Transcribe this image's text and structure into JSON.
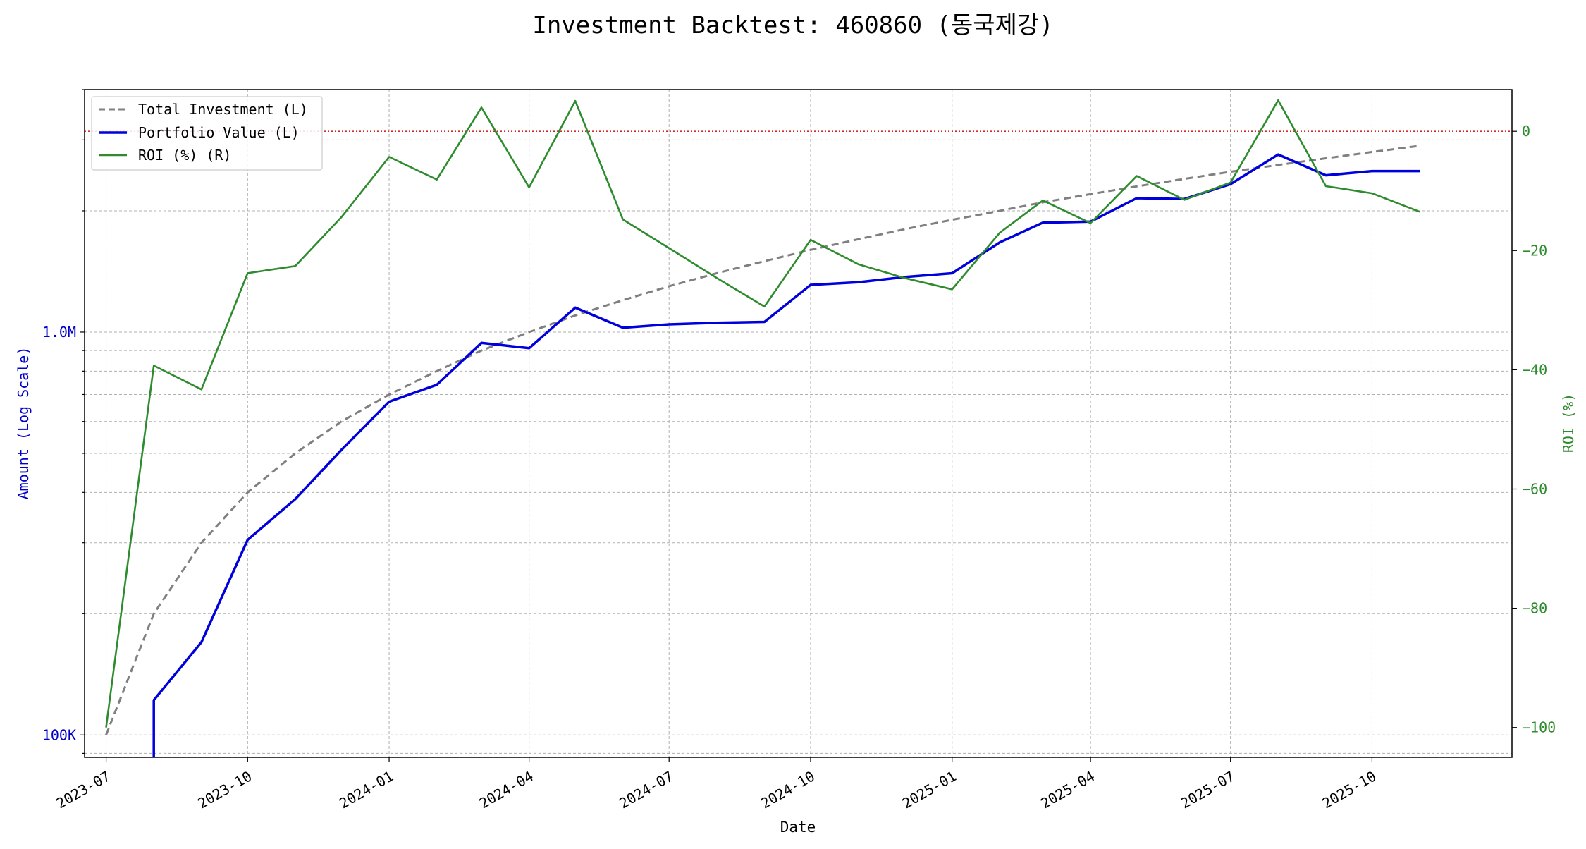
{
  "chart_data": {
    "type": "line",
    "title": "Investment Backtest: 460860 (동국제강)",
    "xlabel": "Date",
    "ylabel_left": "Amount (Log Scale)",
    "ylabel_right": "ROI (%)",
    "left_axis": {
      "scale": "log",
      "ylim": [
        88000,
        4000000
      ],
      "ticks": [
        100000,
        1000000
      ],
      "tick_labels": [
        "100K",
        "1.0M"
      ]
    },
    "right_axis": {
      "scale": "linear",
      "ylim": [
        -105,
        7
      ],
      "ticks": [
        -100,
        -80,
        -60,
        -40,
        -20,
        0
      ],
      "tick_labels": [
        "−100",
        "−80",
        "−60",
        "−40",
        "−20",
        "0"
      ]
    },
    "x_range": [
      "2023-06-17",
      "2025-12-31"
    ],
    "x_ticks": [
      "2023-07-01",
      "2023-10-01",
      "2024-01-01",
      "2024-04-01",
      "2024-07-01",
      "2024-10-01",
      "2025-01-01",
      "2025-04-01",
      "2025-07-01",
      "2025-10-01"
    ],
    "x_tick_labels": [
      "2023-07",
      "2023-10",
      "2024-01",
      "2024-04",
      "2024-07",
      "2024-10",
      "2025-01",
      "2025-04",
      "2025-07",
      "2025-10"
    ],
    "zero_line": {
      "axis": "right",
      "value": 0,
      "color": "#d62728"
    },
    "grid": true,
    "legend_position": "top-left",
    "series": [
      {
        "name": "Total Investment (L)",
        "axis": "left",
        "color": "#808080",
        "style": "dashed",
        "points": [
          [
            "2023-07-01",
            100000
          ],
          [
            "2023-08-01",
            200000
          ],
          [
            "2023-09-01",
            300000
          ],
          [
            "2023-10-01",
            400000
          ],
          [
            "2023-11-01",
            500000
          ],
          [
            "2023-12-01",
            600000
          ],
          [
            "2024-01-01",
            700000
          ],
          [
            "2024-02-01",
            800000
          ],
          [
            "2024-03-01",
            900000
          ],
          [
            "2024-04-01",
            1000000
          ],
          [
            "2024-05-01",
            1100000
          ],
          [
            "2024-06-01",
            1200000
          ],
          [
            "2024-07-01",
            1300000
          ],
          [
            "2024-08-01",
            1400000
          ],
          [
            "2024-09-01",
            1500000
          ],
          [
            "2024-10-01",
            1600000
          ],
          [
            "2024-11-01",
            1700000
          ],
          [
            "2024-12-01",
            1800000
          ],
          [
            "2025-01-01",
            1900000
          ],
          [
            "2025-02-01",
            2000000
          ],
          [
            "2025-03-01",
            2100000
          ],
          [
            "2025-04-01",
            2200000
          ],
          [
            "2025-05-01",
            2300000
          ],
          [
            "2025-06-01",
            2400000
          ],
          [
            "2025-07-01",
            2500000
          ],
          [
            "2025-08-01",
            2600000
          ],
          [
            "2025-09-01",
            2700000
          ],
          [
            "2025-10-01",
            2800000
          ],
          [
            "2025-11-01",
            2900000
          ]
        ]
      },
      {
        "name": "Portfolio Value (L)",
        "axis": "left",
        "color": "#0000dd",
        "style": "solid",
        "points": [
          [
            "2023-08-01",
            70000
          ],
          [
            "2023-08-01",
            122000
          ],
          [
            "2023-09-01",
            170000
          ],
          [
            "2023-10-01",
            305000
          ],
          [
            "2023-11-01",
            385000
          ],
          [
            "2023-12-01",
            510000
          ],
          [
            "2024-01-01",
            672000
          ],
          [
            "2024-02-01",
            740000
          ],
          [
            "2024-03-01",
            940000
          ],
          [
            "2024-04-01",
            912000
          ],
          [
            "2024-05-01",
            1150000
          ],
          [
            "2024-06-01",
            1025000
          ],
          [
            "2024-07-01",
            1045000
          ],
          [
            "2024-08-01",
            1055000
          ],
          [
            "2024-09-01",
            1060000
          ],
          [
            "2024-10-01",
            1310000
          ],
          [
            "2024-11-01",
            1330000
          ],
          [
            "2024-12-01",
            1370000
          ],
          [
            "2025-01-01",
            1400000
          ],
          [
            "2025-02-01",
            1670000
          ],
          [
            "2025-03-01",
            1870000
          ],
          [
            "2025-04-01",
            1880000
          ],
          [
            "2025-05-01",
            2150000
          ],
          [
            "2025-06-01",
            2140000
          ],
          [
            "2025-07-01",
            2330000
          ],
          [
            "2025-08-01",
            2760000
          ],
          [
            "2025-09-01",
            2450000
          ],
          [
            "2025-10-01",
            2510000
          ],
          [
            "2025-11-01",
            2510000
          ]
        ]
      },
      {
        "name": "ROI (%) (R)",
        "axis": "right",
        "color": "#2e8b2e",
        "style": "solid",
        "points": [
          [
            "2023-07-01",
            -100
          ],
          [
            "2023-08-01",
            -39.3
          ],
          [
            "2023-09-01",
            -43.3
          ],
          [
            "2023-10-01",
            -23.8
          ],
          [
            "2023-11-01",
            -22.6
          ],
          [
            "2023-12-01",
            -14.4
          ],
          [
            "2024-01-01",
            -4.3
          ],
          [
            "2024-02-01",
            -8.1
          ],
          [
            "2024-03-01",
            4.0
          ],
          [
            "2024-04-01",
            -9.4
          ],
          [
            "2024-05-01",
            5.1
          ],
          [
            "2024-06-01",
            -14.8
          ],
          [
            "2024-07-01",
            -19.6
          ],
          [
            "2024-08-01",
            -24.6
          ],
          [
            "2024-09-01",
            -29.4
          ],
          [
            "2024-10-01",
            -18.2
          ],
          [
            "2024-11-01",
            -22.3
          ],
          [
            "2024-12-01",
            -24.6
          ],
          [
            "2025-01-01",
            -26.5
          ],
          [
            "2025-02-01",
            -17.0
          ],
          [
            "2025-03-01",
            -11.6
          ],
          [
            "2025-04-01",
            -15.4
          ],
          [
            "2025-05-01",
            -7.5
          ],
          [
            "2025-06-01",
            -11.5
          ],
          [
            "2025-07-01",
            -8.6
          ],
          [
            "2025-08-01",
            5.2
          ],
          [
            "2025-09-01",
            -9.2
          ],
          [
            "2025-10-01",
            -10.4
          ],
          [
            "2025-11-01",
            -13.5
          ]
        ]
      }
    ]
  }
}
